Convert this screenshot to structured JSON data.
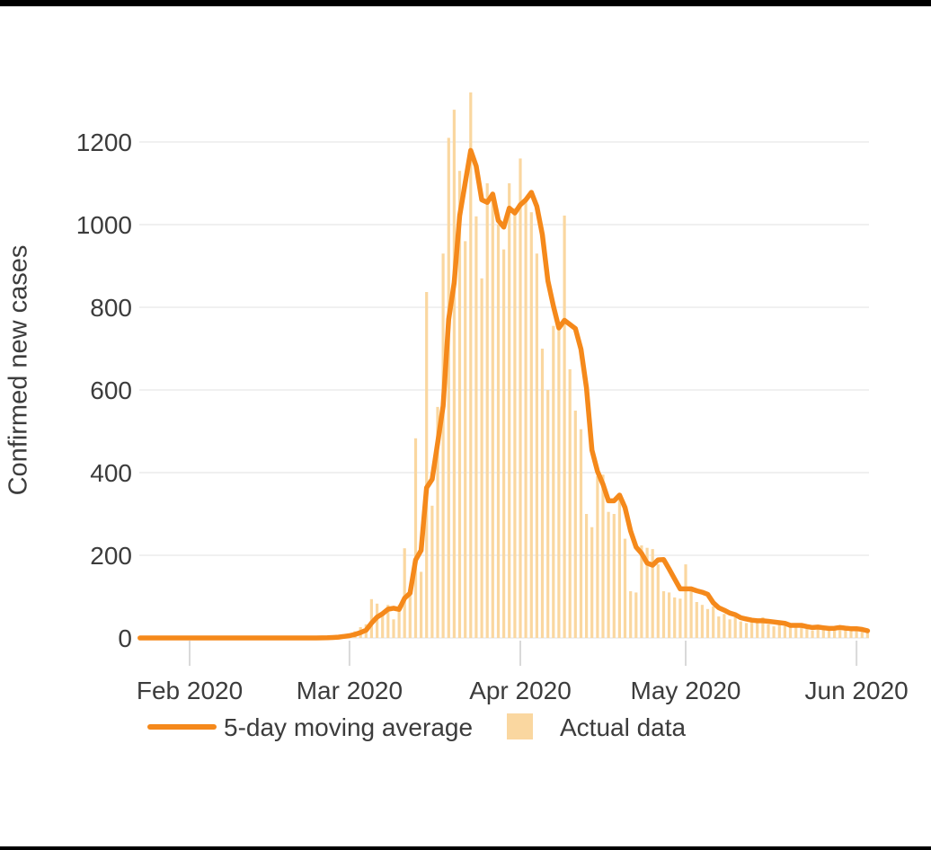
{
  "style": {
    "background": "#ffffff",
    "letterbox_color": "#000000",
    "text_color": "#3c3c3c",
    "grid_color": "#ececec",
    "tick_color": "#d9d9d9",
    "line_color": "#f5891b",
    "bar_color": "#fad7a0"
  },
  "legend": {
    "items": [
      {
        "label": "5-day moving average",
        "swatch": "line",
        "color": "#f5891b"
      },
      {
        "label": "Actual data",
        "swatch": "square",
        "color": "#fad7a0"
      }
    ]
  },
  "chart_data": {
    "type": "bar",
    "overlay": "line",
    "title": "",
    "xlabel": "",
    "ylabel": "Confirmed new cases",
    "ylim": [
      0,
      1333
    ],
    "yticks": [
      0,
      200,
      400,
      600,
      800,
      1000,
      1200
    ],
    "xticks": [
      {
        "label": "Feb 2020",
        "day_index": 10
      },
      {
        "label": "Mar 2020",
        "day_index": 39
      },
      {
        "label": "Apr 2020",
        "day_index": 70
      },
      {
        "label": "May 2020",
        "day_index": 100
      },
      {
        "label": "Jun 2020",
        "day_index": 131
      }
    ],
    "grid": "horizontal",
    "legend_position": "bottom",
    "x_start_date": "2020-01-22",
    "x_end_date": "2020-06-03",
    "frequency": "daily",
    "series": [
      {
        "name": "Actual data",
        "type": "bar",
        "color": "#fad7a0",
        "values": [
          0,
          0,
          0,
          0,
          0,
          0,
          0,
          0,
          0,
          0,
          0,
          0,
          0,
          0,
          0,
          0,
          0,
          0,
          0,
          0,
          0,
          0,
          0,
          0,
          0,
          0,
          0,
          0,
          0,
          0,
          0,
          0,
          0,
          0,
          1,
          1,
          3,
          5,
          8,
          10,
          16,
          26,
          33,
          94,
          83,
          58,
          80,
          45,
          80,
          217,
          120,
          483,
          160,
          837,
          320,
          559,
          930,
          1210,
          1278,
          1130,
          960,
          1320,
          1020,
          870,
          1100,
          1060,
          1000,
          940,
          1100,
          1040,
          1160,
          1060,
          1030,
          930,
          700,
          600,
          755,
          765,
          1022,
          650,
          550,
          505,
          300,
          268,
          391,
          395,
          305,
          300,
          337,
          240,
          113,
          110,
          224,
          218,
          215,
          178,
          113,
          110,
          98,
          95,
          178,
          113,
          87,
          80,
          70,
          76,
          52,
          58,
          45,
          50,
          40,
          36,
          44,
          38,
          50,
          33,
          28,
          36,
          30,
          25,
          33,
          28,
          22,
          18,
          30,
          25,
          20,
          24,
          28,
          22,
          18,
          20,
          15,
          12
        ]
      },
      {
        "name": "5-day moving average",
        "type": "line",
        "color": "#f5891b",
        "definition": "5-day trailing moving average of Actual data",
        "window": 5
      }
    ]
  }
}
